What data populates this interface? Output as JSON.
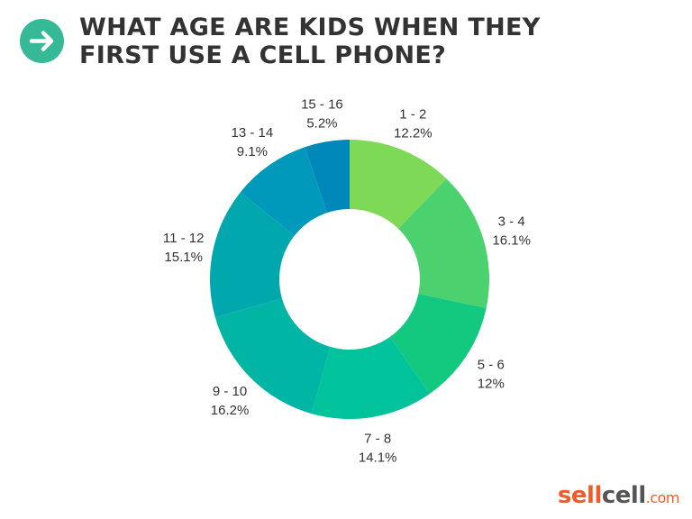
{
  "header": {
    "title_line1": "WHAT AGE ARE KIDS WHEN THEY",
    "title_line2": "FIRST USE A CELL PHONE?",
    "icon": "arrow-right-icon",
    "icon_color": "#35b996"
  },
  "logo": {
    "sell": "sell",
    "cell": "cell",
    "com": ".com"
  },
  "chart_data": {
    "type": "pie",
    "donut": true,
    "title": "WHAT AGE ARE KIDS WHEN THEY FIRST USE A CELL PHONE?",
    "categories": [
      "1 - 2",
      "3 - 4",
      "5 - 6",
      "7 - 8",
      "9 - 10",
      "11 - 12",
      "13 - 14",
      "15 - 16"
    ],
    "values": [
      12.2,
      16.1,
      12,
      14.1,
      16.2,
      15.1,
      9.1,
      5.2
    ],
    "labels": [
      "12.2%",
      "16.1%",
      "12%",
      "14.1%",
      "16.2%",
      "15.1%",
      "9.1%",
      "5.2%"
    ],
    "colors": [
      "#7ed957",
      "#4cd16f",
      "#12c97f",
      "#00c29b",
      "#00b5a3",
      "#00a8ad",
      "#0099bb",
      "#0088bb"
    ]
  }
}
